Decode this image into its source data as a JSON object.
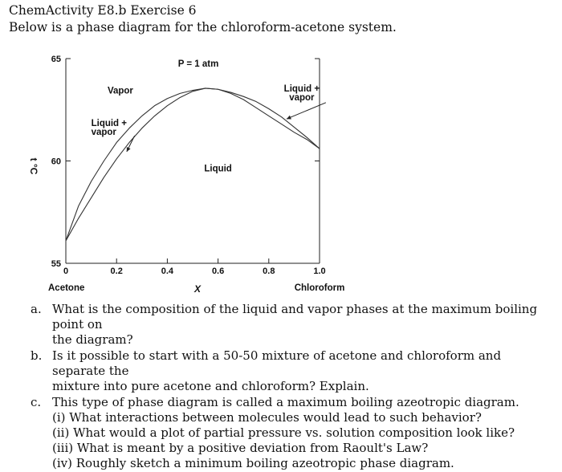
{
  "heading": {
    "title": "ChemActivity E8.b Exercise 6",
    "intro": "Below is a phase diagram for the chloroform-acetone system."
  },
  "chart_data": {
    "type": "line",
    "title": "P = 1 atm",
    "xlabel": "X",
    "ylabel": "t °C",
    "xlim": [
      0,
      1.0
    ],
    "ylim": [
      55,
      65
    ],
    "x_ticks": [
      {
        "value": 0,
        "label": "0"
      },
      {
        "value": 0.2,
        "label": "0.2"
      },
      {
        "value": 0.4,
        "label": "0.4"
      },
      {
        "value": 0.6,
        "label": "0.6"
      },
      {
        "value": 0.8,
        "label": "0.8"
      },
      {
        "value": 1.0,
        "label": "1.0"
      }
    ],
    "y_ticks": [
      {
        "value": 65,
        "label": "65"
      },
      {
        "value": 60,
        "label": "60"
      },
      {
        "value": 55,
        "label": "55"
      }
    ],
    "end_labels": {
      "left": "Acetone",
      "right": "Chloroform"
    },
    "series": [
      {
        "x": [
          0,
          0.05,
          0.1,
          0.15,
          0.2,
          0.25,
          0.3,
          0.35,
          0.4,
          0.45,
          0.5,
          0.55,
          0.6,
          0.65,
          0.7,
          0.75,
          0.8,
          0.85,
          0.9,
          0.95,
          1.0
        ],
        "y": [
          56.1,
          57.2,
          58.2,
          59.2,
          60.1,
          60.9,
          61.6,
          62.2,
          62.7,
          63.1,
          63.4,
          63.55,
          63.5,
          63.3,
          63.0,
          62.6,
          62.2,
          61.8,
          61.4,
          61.05,
          60.6
        ]
      },
      {
        "x": [
          0,
          0.05,
          0.1,
          0.15,
          0.2,
          0.25,
          0.3,
          0.35,
          0.4,
          0.45,
          0.5,
          0.55,
          0.6,
          0.65,
          0.7,
          0.75,
          0.8,
          0.85,
          0.9,
          0.95,
          1.0
        ],
        "y": [
          56.1,
          57.8,
          59.0,
          60.0,
          60.9,
          61.6,
          62.2,
          62.7,
          63.05,
          63.3,
          63.45,
          63.55,
          63.5,
          63.35,
          63.15,
          62.9,
          62.55,
          62.15,
          61.65,
          61.15,
          60.6
        ]
      }
    ],
    "annotations": [
      {
        "lines": [
          "Vapor"
        ],
        "x": 0.215,
        "y": 63.3,
        "anchor": "middle"
      },
      {
        "lines": [
          "Liquid +",
          "vapor"
        ],
        "x": 0.1,
        "y": 61.7,
        "anchor": "start",
        "arrow_to": [
          0.24,
          60.45
        ]
      },
      {
        "lines": [
          "Liquid +",
          "vapor"
        ],
        "x": 0.93,
        "y": 63.4,
        "anchor": "middle",
        "arrow_to": [
          0.87,
          62.05
        ]
      },
      {
        "lines": [
          "Liquid"
        ],
        "x": 0.6,
        "y": 59.5,
        "anchor": "middle"
      }
    ]
  },
  "questions": [
    {
      "letter": "a.",
      "lines": [
        "What is the composition of the liquid and vapor phases at the maximum boiling point on",
        "the diagram?"
      ]
    },
    {
      "letter": "b.",
      "lines": [
        "Is it possible to start with a 50-50 mixture of acetone and chloroform and separate the",
        "mixture into pure acetone and chloroform? Explain."
      ]
    },
    {
      "letter": "c.",
      "lines": [
        "This type of phase diagram is called a maximum boiling azeotropic diagram.",
        "(i) What interactions between molecules would lead to such behavior?",
        "(ii) What would a plot of partial pressure vs. solution composition look like?",
        "(iii) What is meant by a positive deviation from Raoult's Law?",
        "(iv) Roughly sketch a minimum boiling azeotropic phase diagram."
      ]
    }
  ]
}
